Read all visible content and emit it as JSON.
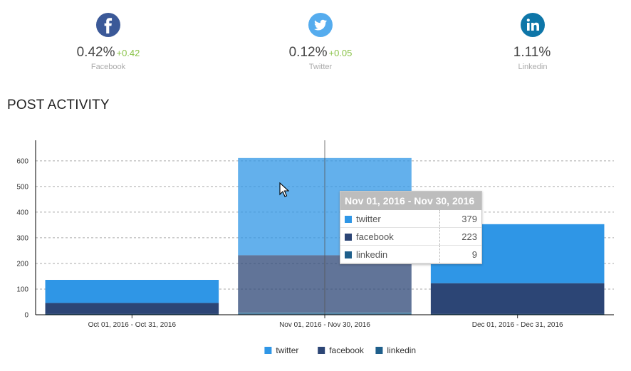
{
  "stats": [
    {
      "name": "facebook",
      "icon": "facebook-icon",
      "color": "#3b5998",
      "value": "0.42%",
      "change": "+0.42",
      "label": "Facebook"
    },
    {
      "name": "twitter",
      "icon": "twitter-icon",
      "color": "#55acee",
      "value": "0.12%",
      "change": "+0.05",
      "label": "Twitter"
    },
    {
      "name": "linkedin",
      "icon": "linkedin-icon",
      "color": "#0e76a8",
      "value": "1.11%",
      "change": "",
      "label": "Linkedin"
    }
  ],
  "section_title": "POST ACTIVITY",
  "chart_data": {
    "type": "bar",
    "stacked": true,
    "categories": [
      "Oct 01, 2016 - Oct 31, 2016",
      "Nov 01, 2016 - Nov 30, 2016",
      "Dec 01, 2016 - Dec 31, 2016"
    ],
    "series": [
      {
        "name": "linkedin",
        "color": "#1f5f8b",
        "values": [
          3,
          9,
          3
        ]
      },
      {
        "name": "facebook",
        "color": "#2c4575",
        "values": [
          43,
          223,
          120
        ]
      },
      {
        "name": "twitter",
        "color": "#2f96e6",
        "values": [
          90,
          379,
          230
        ]
      }
    ],
    "ylim": [
      0,
      680
    ],
    "yticks": [
      0,
      100,
      200,
      300,
      400,
      500,
      600
    ],
    "grid": true,
    "legend_position": "bottom",
    "highlighted_category": 1
  },
  "tooltip": {
    "title": "Nov 01, 2016 - Nov 30, 2016",
    "rows": [
      {
        "label": "twitter",
        "value": "379",
        "color": "#2f96e6"
      },
      {
        "label": "facebook",
        "value": "223",
        "color": "#2c4575"
      },
      {
        "label": "linkedin",
        "value": "9",
        "color": "#1f5f8b"
      }
    ]
  },
  "legend": [
    {
      "label": "twitter",
      "color": "#2f96e6"
    },
    {
      "label": "facebook",
      "color": "#2c4575"
    },
    {
      "label": "linkedin",
      "color": "#1f5f8b"
    }
  ]
}
